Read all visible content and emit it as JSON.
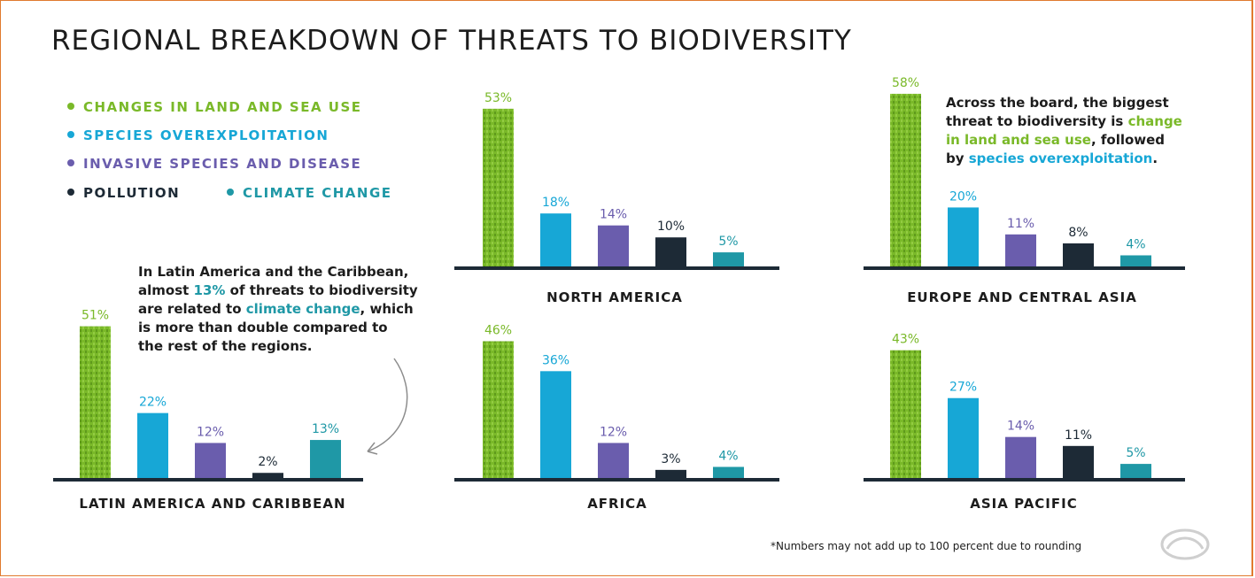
{
  "title": "REGIONAL BREAKDOWN OF THREATS TO BIODIVERSITY",
  "legend": [
    {
      "label": "CHANGES IN LAND AND SEA USE",
      "color": "#7ab929"
    },
    {
      "label": "SPECIES OVEREXPLOITATION",
      "color": "#17a7d6"
    },
    {
      "label": "INVASIVE SPECIES AND DISEASE",
      "color": "#6a5dad"
    },
    {
      "label": "POLLUTION",
      "color": "#1d2a36"
    },
    {
      "label": "CLIMATE CHANGE",
      "color": "#1f98a6"
    }
  ],
  "notes": {
    "latin": {
      "line1": "In Latin America and the Caribbean,",
      "line2a": "almost ",
      "line2b": "13%",
      "line2c": " of threats to biodiversity",
      "line3a": "are related to ",
      "line3b": "climate change",
      "line3c": ", which",
      "line4": "is more than double compared to",
      "line5": "the rest of the regions."
    },
    "board": {
      "line1": "Across the board, the biggest",
      "line2a": "threat to biodiversity is ",
      "line2b": "change",
      "line3a": "in land and sea use",
      "line3b": ", followed",
      "line4a": "by ",
      "line4b": "species overexploitation",
      "line4c": "."
    }
  },
  "footnote": "*Numbers may not add up to 100 percent due to rounding",
  "chart_data": [
    {
      "type": "bar",
      "region": "NORTH AMERICA",
      "categories": [
        "CHANGES IN LAND AND SEA USE",
        "SPECIES OVEREXPLOITATION",
        "INVASIVE SPECIES AND DISEASE",
        "POLLUTION",
        "CLIMATE CHANGE"
      ],
      "values": [
        53,
        18,
        14,
        10,
        5
      ],
      "labels": [
        "53%",
        "18%",
        "14%",
        "10%",
        "5%"
      ]
    },
    {
      "type": "bar",
      "region": "EUROPE AND CENTRAL ASIA",
      "categories": [
        "CHANGES IN LAND AND SEA USE",
        "SPECIES OVEREXPLOITATION",
        "INVASIVE SPECIES AND DISEASE",
        "POLLUTION",
        "CLIMATE CHANGE"
      ],
      "values": [
        58,
        20,
        11,
        8,
        4
      ],
      "labels": [
        "58%",
        "20%",
        "11%",
        "8%",
        "4%"
      ]
    },
    {
      "type": "bar",
      "region": "LATIN AMERICA AND CARIBBEAN",
      "categories": [
        "CHANGES IN LAND AND SEA USE",
        "SPECIES OVEREXPLOITATION",
        "INVASIVE SPECIES AND DISEASE",
        "POLLUTION",
        "CLIMATE CHANGE"
      ],
      "values": [
        51,
        22,
        12,
        2,
        13
      ],
      "labels": [
        "51%",
        "22%",
        "12%",
        "2%",
        "13%"
      ]
    },
    {
      "type": "bar",
      "region": "AFRICA",
      "categories": [
        "CHANGES IN LAND AND SEA USE",
        "SPECIES OVEREXPLOITATION",
        "INVASIVE SPECIES AND DISEASE",
        "POLLUTION",
        "CLIMATE CHANGE"
      ],
      "values": [
        46,
        36,
        12,
        3,
        4
      ],
      "labels": [
        "46%",
        "36%",
        "12%",
        "3%",
        "4%"
      ]
    },
    {
      "type": "bar",
      "region": "ASIA PACIFIC",
      "categories": [
        "CHANGES IN LAND AND SEA USE",
        "SPECIES OVEREXPLOITATION",
        "INVASIVE SPECIES AND DISEASE",
        "POLLUTION",
        "CLIMATE CHANGE"
      ],
      "values": [
        43,
        27,
        14,
        11,
        5
      ],
      "labels": [
        "43%",
        "27%",
        "14%",
        "11%",
        "5%"
      ]
    }
  ]
}
